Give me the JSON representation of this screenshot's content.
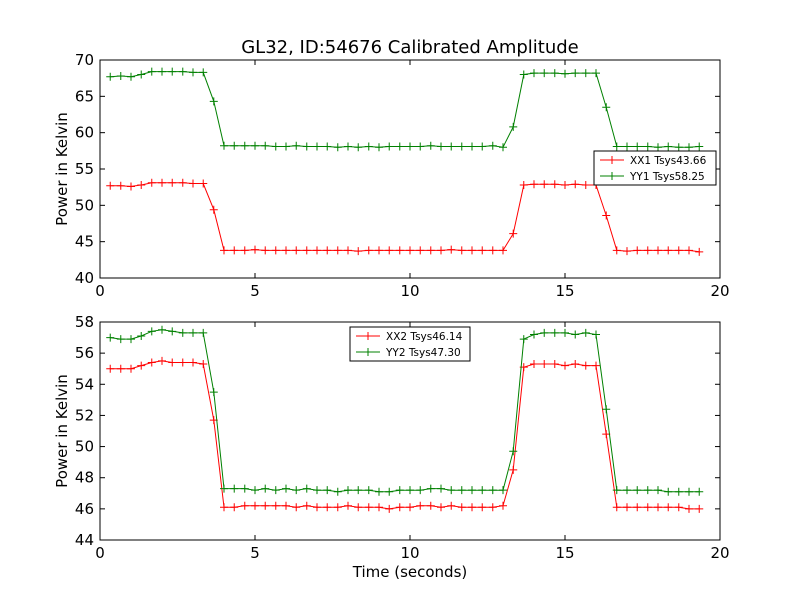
{
  "figure": {
    "title": "GL32, ID:54676 Calibrated Amplitude"
  },
  "chart_data": [
    {
      "type": "line",
      "title": "GL32, ID:54676 Calibrated Amplitude",
      "xlabel": "",
      "ylabel": "Power in Kelvin",
      "xlim": [
        0,
        20
      ],
      "ylim": [
        40,
        70
      ],
      "xticks": [
        0,
        5,
        10,
        15,
        20
      ],
      "yticks": [
        40,
        45,
        50,
        55,
        60,
        65,
        70
      ],
      "legend_position": "center-right",
      "grid": false,
      "x": [
        0.33,
        0.67,
        1.0,
        1.33,
        1.67,
        2.0,
        2.33,
        2.67,
        3.0,
        3.33,
        3.67,
        4.0,
        4.33,
        4.67,
        5.0,
        5.33,
        5.67,
        6.0,
        6.33,
        6.67,
        7.0,
        7.33,
        7.67,
        8.0,
        8.33,
        8.67,
        9.0,
        9.33,
        9.67,
        10.0,
        10.33,
        10.67,
        11.0,
        11.33,
        11.67,
        12.0,
        12.33,
        12.67,
        13.0,
        13.33,
        13.67,
        14.0,
        14.33,
        14.67,
        15.0,
        15.33,
        15.67,
        16.0,
        16.33,
        16.67,
        17.0,
        17.33,
        17.67,
        18.0,
        18.33,
        18.67,
        19.0,
        19.33
      ],
      "series": [
        {
          "name": "XX1 Tsys43.66",
          "color": "#ff0000",
          "values": [
            52.7,
            52.7,
            52.6,
            52.8,
            53.1,
            53.1,
            53.1,
            53.1,
            53.0,
            53.0,
            49.4,
            43.8,
            43.8,
            43.8,
            43.9,
            43.8,
            43.8,
            43.8,
            43.8,
            43.8,
            43.8,
            43.8,
            43.8,
            43.8,
            43.7,
            43.8,
            43.8,
            43.8,
            43.8,
            43.8,
            43.8,
            43.8,
            43.8,
            43.9,
            43.8,
            43.8,
            43.8,
            43.8,
            43.8,
            46.1,
            52.8,
            52.9,
            52.9,
            52.9,
            52.8,
            52.9,
            52.8,
            52.8,
            48.6,
            43.8,
            43.7,
            43.8,
            43.8,
            43.8,
            43.8,
            43.8,
            43.8,
            43.6
          ]
        },
        {
          "name": "YY1 Tsys58.25",
          "color": "#008000",
          "values": [
            67.7,
            67.8,
            67.7,
            68.0,
            68.4,
            68.4,
            68.4,
            68.4,
            68.3,
            68.3,
            64.3,
            58.2,
            58.2,
            58.2,
            58.2,
            58.2,
            58.1,
            58.1,
            58.2,
            58.1,
            58.1,
            58.1,
            58.0,
            58.1,
            58.0,
            58.1,
            58.0,
            58.1,
            58.1,
            58.1,
            58.1,
            58.2,
            58.1,
            58.1,
            58.1,
            58.1,
            58.1,
            58.2,
            58.0,
            60.8,
            68.0,
            68.2,
            68.2,
            68.2,
            68.1,
            68.2,
            68.2,
            68.2,
            63.5,
            58.1,
            58.1,
            58.1,
            58.1,
            58.0,
            58.1,
            58.0,
            58.0,
            58.1
          ]
        }
      ]
    },
    {
      "type": "line",
      "title": "",
      "xlabel": "Time (seconds)",
      "ylabel": "Power in Kelvin",
      "xlim": [
        0,
        20
      ],
      "ylim": [
        44,
        58
      ],
      "xticks": [
        0,
        5,
        10,
        15,
        20
      ],
      "yticks": [
        44,
        46,
        48,
        50,
        52,
        54,
        56,
        58
      ],
      "legend_position": "top-center",
      "grid": false,
      "x": [
        0.33,
        0.67,
        1.0,
        1.33,
        1.67,
        2.0,
        2.33,
        2.67,
        3.0,
        3.33,
        3.67,
        4.0,
        4.33,
        4.67,
        5.0,
        5.33,
        5.67,
        6.0,
        6.33,
        6.67,
        7.0,
        7.33,
        7.67,
        8.0,
        8.33,
        8.67,
        9.0,
        9.33,
        9.67,
        10.0,
        10.33,
        10.67,
        11.0,
        11.33,
        11.67,
        12.0,
        12.33,
        12.67,
        13.0,
        13.33,
        13.67,
        14.0,
        14.33,
        14.67,
        15.0,
        15.33,
        15.67,
        16.0,
        16.33,
        16.67,
        17.0,
        17.33,
        17.67,
        18.0,
        18.33,
        18.67,
        19.0,
        19.33
      ],
      "series": [
        {
          "name": "XX2 Tsys46.14",
          "color": "#ff0000",
          "values": [
            55.0,
            55.0,
            55.0,
            55.2,
            55.4,
            55.5,
            55.4,
            55.4,
            55.4,
            55.3,
            51.7,
            46.1,
            46.1,
            46.2,
            46.2,
            46.2,
            46.2,
            46.2,
            46.1,
            46.2,
            46.1,
            46.1,
            46.1,
            46.2,
            46.1,
            46.1,
            46.1,
            46.0,
            46.1,
            46.1,
            46.2,
            46.2,
            46.1,
            46.2,
            46.1,
            46.1,
            46.1,
            46.1,
            46.2,
            48.5,
            55.1,
            55.3,
            55.3,
            55.3,
            55.2,
            55.3,
            55.2,
            55.2,
            50.8,
            46.1,
            46.1,
            46.1,
            46.1,
            46.1,
            46.1,
            46.1,
            46.0,
            46.0
          ]
        },
        {
          "name": "YY2 Tsys47.30",
          "color": "#008000",
          "values": [
            57.0,
            56.9,
            56.9,
            57.1,
            57.4,
            57.5,
            57.4,
            57.3,
            57.3,
            57.3,
            53.5,
            47.3,
            47.3,
            47.3,
            47.2,
            47.3,
            47.2,
            47.3,
            47.2,
            47.3,
            47.2,
            47.2,
            47.1,
            47.2,
            47.2,
            47.2,
            47.1,
            47.1,
            47.2,
            47.2,
            47.2,
            47.3,
            47.3,
            47.2,
            47.2,
            47.2,
            47.2,
            47.2,
            47.2,
            49.7,
            56.9,
            57.2,
            57.3,
            57.3,
            57.3,
            57.2,
            57.3,
            57.2,
            52.4,
            47.2,
            47.2,
            47.2,
            47.2,
            47.2,
            47.1,
            47.1,
            47.1,
            47.1
          ]
        }
      ]
    }
  ]
}
